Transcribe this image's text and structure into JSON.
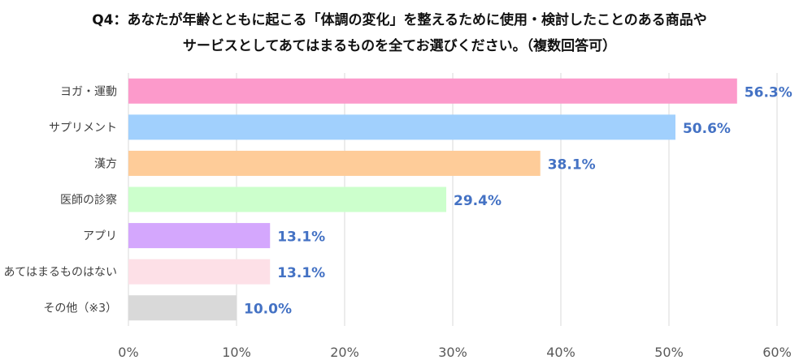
{
  "chart_data": {
    "type": "bar",
    "orientation": "horizontal",
    "title_line1": "Q4：あなたが年齢とともに起こる「体調の変化」を整えるために使用・検討したことのある商品や",
    "title_line2": "サービスとしてあてはまるものを全てお選びください。（複数回答可）",
    "categories": [
      "ヨガ・運動",
      "サプリメント",
      "漢方",
      "医師の診察",
      "アプリ",
      "あてはまるものはない",
      "その他（※3）"
    ],
    "values": [
      56.3,
      50.6,
      38.1,
      29.4,
      13.1,
      13.1,
      10.0
    ],
    "value_labels": [
      "56.3%",
      "50.6%",
      "38.1%",
      "29.4%",
      "13.1%",
      "13.1%",
      "10.0%"
    ],
    "colors": [
      "#FC9ACB",
      "#A1D0FD",
      "#FECC99",
      "#CCFFCC",
      "#D4A7FD",
      "#FDE0E7",
      "#D9D9D9"
    ],
    "label_color": "#4472C4",
    "xlim": [
      0,
      60
    ],
    "ticks": [
      0,
      10,
      20,
      30,
      40,
      50,
      60
    ],
    "tick_labels": [
      "0%",
      "10%",
      "20%",
      "30%",
      "40%",
      "50%",
      "60%"
    ],
    "grid": true,
    "xlabel": "",
    "ylabel": ""
  }
}
